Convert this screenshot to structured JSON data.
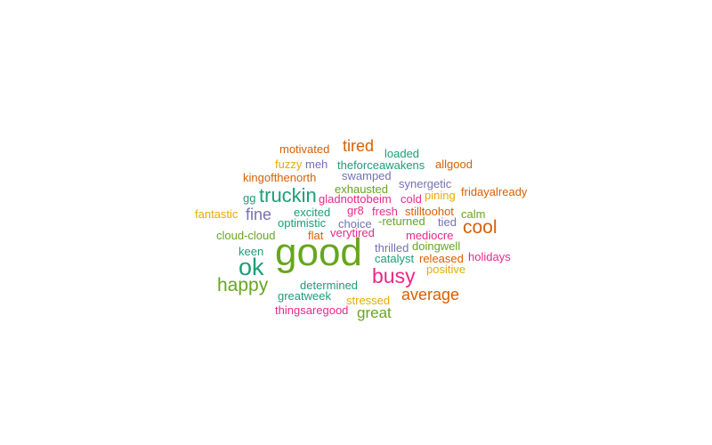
{
  "palette": {
    "teal": "#1b9e77",
    "orange": "#d95f02",
    "purple": "#7570b3",
    "magenta": "#e7298a",
    "green": "#66a61e",
    "gold": "#e6ab02"
  },
  "words": [
    {
      "text": "good",
      "weight": 100,
      "color": "green"
    },
    {
      "text": "busy",
      "weight": 60,
      "color": "magenta"
    },
    {
      "text": "ok",
      "weight": 60,
      "color": "teal"
    },
    {
      "text": "truckin",
      "weight": 48,
      "color": "teal"
    },
    {
      "text": "cool",
      "weight": 45,
      "color": "orange"
    },
    {
      "text": "happy",
      "weight": 45,
      "color": "green"
    },
    {
      "text": "average",
      "weight": 38,
      "color": "orange"
    },
    {
      "text": "tired",
      "weight": 38,
      "color": "orange"
    },
    {
      "text": "great",
      "weight": 35,
      "color": "green"
    },
    {
      "text": "fine",
      "weight": 35,
      "color": "purple"
    },
    {
      "text": "motivated",
      "weight": 25,
      "color": "orange"
    },
    {
      "text": "loaded",
      "weight": 25,
      "color": "teal"
    },
    {
      "text": "fuzzy",
      "weight": 25,
      "color": "gold"
    },
    {
      "text": "meh",
      "weight": 25,
      "color": "purple"
    },
    {
      "text": "theforceawakens",
      "weight": 25,
      "color": "teal"
    },
    {
      "text": "allgood",
      "weight": 25,
      "color": "orange"
    },
    {
      "text": "kingofthenorth",
      "weight": 25,
      "color": "orange"
    },
    {
      "text": "swamped",
      "weight": 25,
      "color": "purple"
    },
    {
      "text": "synergetic",
      "weight": 25,
      "color": "purple"
    },
    {
      "text": "exhausted",
      "weight": 25,
      "color": "green"
    },
    {
      "text": "pining",
      "weight": 25,
      "color": "gold"
    },
    {
      "text": "fridayalready",
      "weight": 25,
      "color": "orange"
    },
    {
      "text": "gg",
      "weight": 25,
      "color": "teal"
    },
    {
      "text": "gladnottobeim",
      "weight": 25,
      "color": "magenta"
    },
    {
      "text": "cold",
      "weight": 25,
      "color": "magenta"
    },
    {
      "text": "fantastic",
      "weight": 25,
      "color": "gold"
    },
    {
      "text": "excited",
      "weight": 25,
      "color": "teal"
    },
    {
      "text": "gr8",
      "weight": 25,
      "color": "magenta"
    },
    {
      "text": "fresh",
      "weight": 25,
      "color": "magenta"
    },
    {
      "text": "stilltoohot",
      "weight": 25,
      "color": "orange"
    },
    {
      "text": "calm",
      "weight": 25,
      "color": "green"
    },
    {
      "text": "optimistic",
      "weight": 25,
      "color": "teal"
    },
    {
      "text": "choice",
      "weight": 25,
      "color": "purple"
    },
    {
      "text": "-returned",
      "weight": 25,
      "color": "green"
    },
    {
      "text": "tied",
      "weight": 25,
      "color": "purple"
    },
    {
      "text": "cloud-cloud",
      "weight": 25,
      "color": "green"
    },
    {
      "text": "flat",
      "weight": 25,
      "color": "orange"
    },
    {
      "text": "verytired",
      "weight": 25,
      "color": "magenta"
    },
    {
      "text": "mediocre",
      "weight": 25,
      "color": "magenta"
    },
    {
      "text": "thrilled",
      "weight": 25,
      "color": "purple"
    },
    {
      "text": "doingwell",
      "weight": 25,
      "color": "green"
    },
    {
      "text": "keen",
      "weight": 25,
      "color": "teal"
    },
    {
      "text": "catalyst",
      "weight": 25,
      "color": "teal"
    },
    {
      "text": "released",
      "weight": 25,
      "color": "orange"
    },
    {
      "text": "holidays",
      "weight": 25,
      "color": "magenta"
    },
    {
      "text": "positive",
      "weight": 25,
      "color": "gold"
    },
    {
      "text": "determined",
      "weight": 25,
      "color": "teal"
    },
    {
      "text": "greatweek",
      "weight": 25,
      "color": "teal"
    },
    {
      "text": "stressed",
      "weight": 25,
      "color": "gold"
    },
    {
      "text": "thingsaregood",
      "weight": 25,
      "color": "magenta"
    }
  ]
}
